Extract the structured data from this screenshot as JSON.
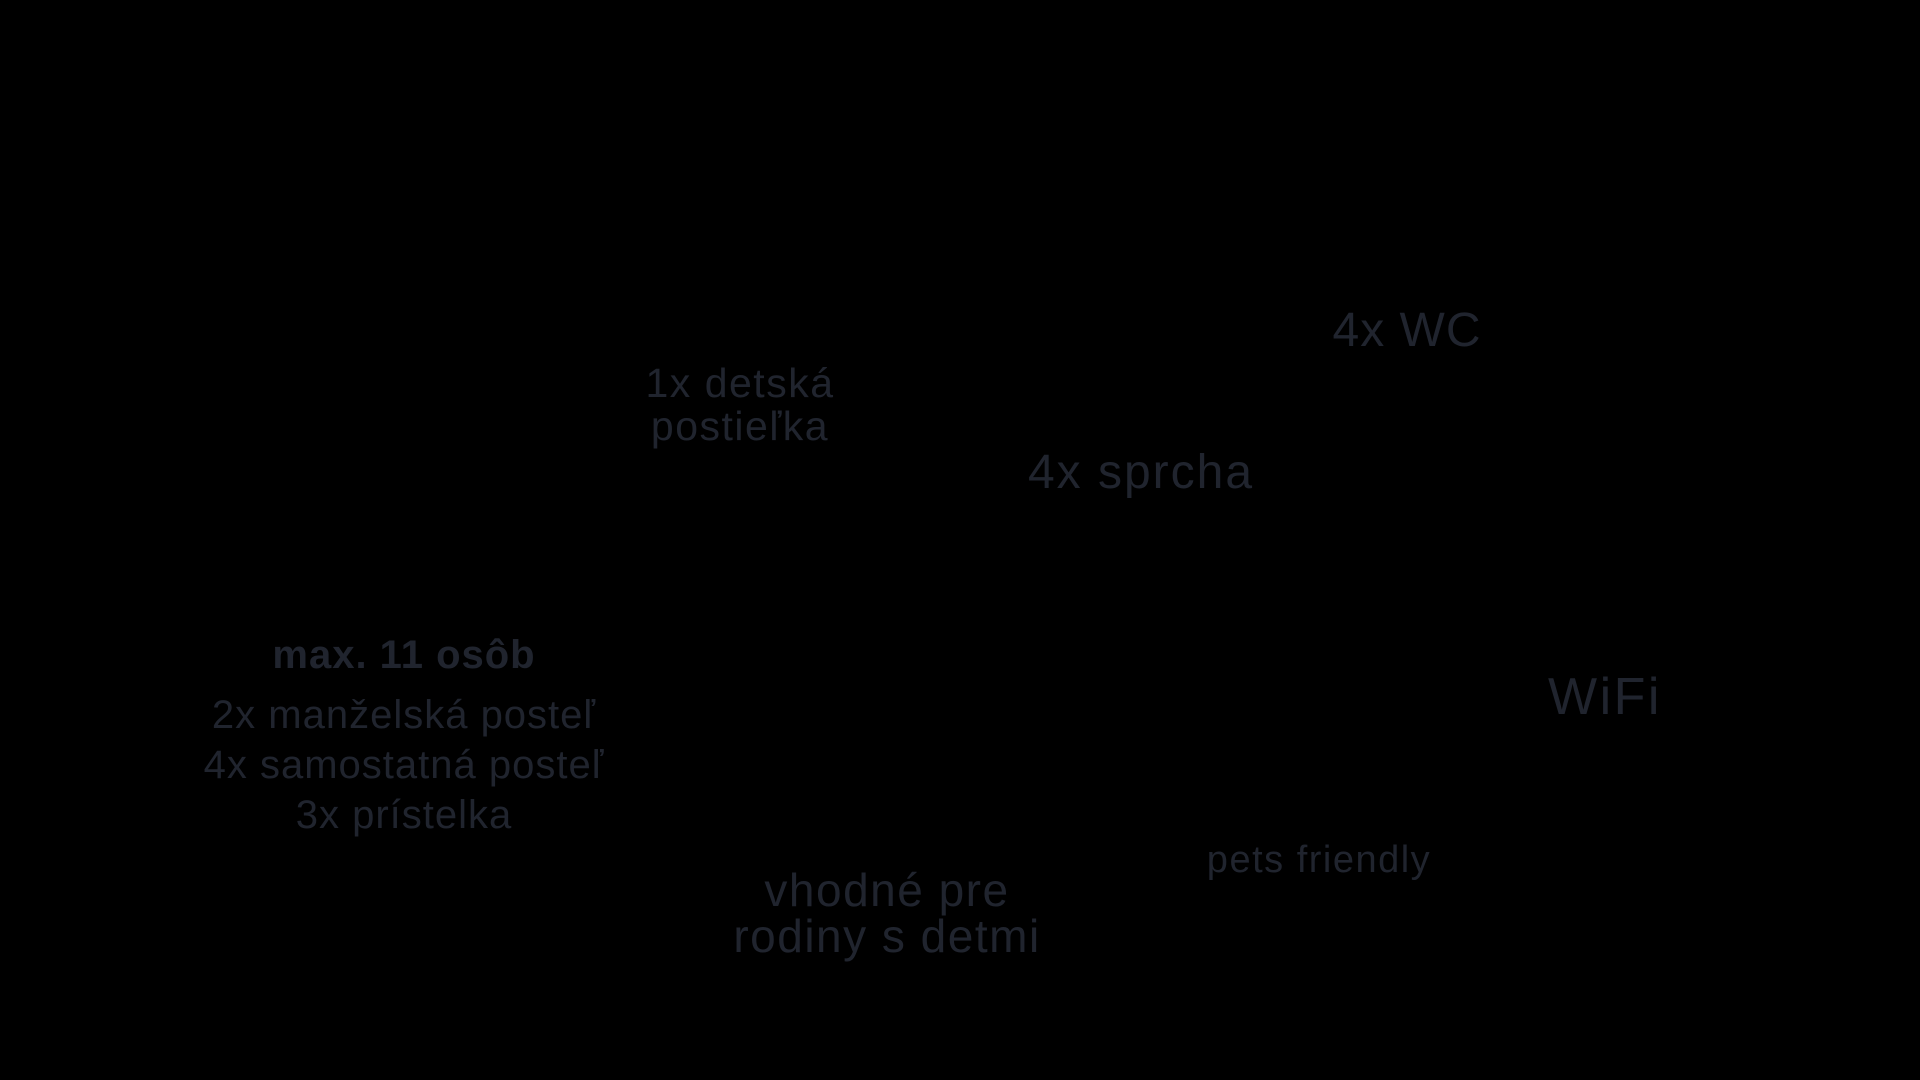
{
  "page": {
    "background_color": "#000000",
    "text_color": "#20242e"
  },
  "amenities": {
    "crib": {
      "line1": "1x detská",
      "line2": "postieľka"
    },
    "wc": {
      "label": "4x WC"
    },
    "shower": {
      "label": "4x sprcha"
    },
    "capacity": {
      "title": "max. 11 osôb",
      "lines": [
        "2x manželská posteľ",
        "4x samostatná posteľ",
        "3x prístelka"
      ]
    },
    "wifi": {
      "label": "WiFi"
    },
    "pets": {
      "label": "pets friendly"
    },
    "family": {
      "line1": "vhodné pre",
      "line2": "rodiny s detmi"
    }
  }
}
